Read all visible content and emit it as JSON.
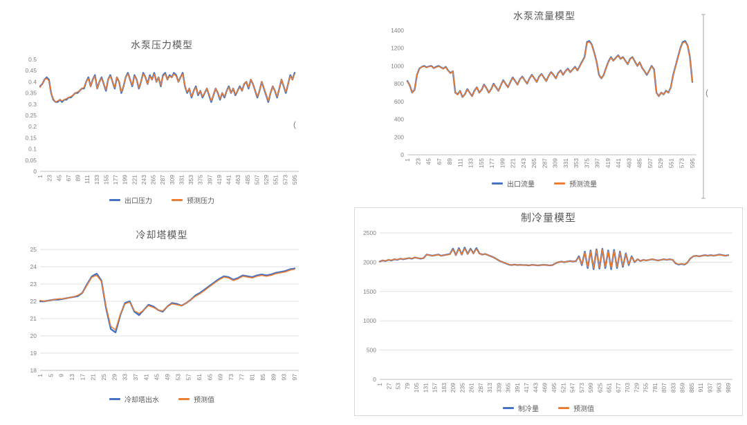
{
  "colors": {
    "actual": "#4472c4",
    "predicted": "#ed7d31",
    "title": "#595959",
    "axis_text": "#7f7f7f",
    "grid": "#e0e0e0",
    "axis_line": "#bfbfbf",
    "panel_border": "#d9d9d9"
  },
  "artifacts": {
    "marks": [
      "(",
      "("
    ]
  },
  "chart_data": [
    {
      "id": "pump-pressure",
      "type": "line",
      "title": "水泵压力模型",
      "xlabel": "",
      "ylabel": "",
      "y_min": 0,
      "y_max": 0.5,
      "grid": false,
      "legend_position": "bottom",
      "y_tick_labels": [
        "0.5",
        "0.45",
        "0.4",
        "0.35",
        "0.3",
        "0.25",
        "0.2",
        "0.15",
        "0.1",
        "0.05",
        "0"
      ],
      "x_tick_labels": [
        "1",
        "23",
        "45",
        "67",
        "89",
        "111",
        "133",
        "155",
        "177",
        "199",
        "221",
        "243",
        "265",
        "287",
        "309",
        "331",
        "353",
        "375",
        "397",
        "419",
        "441",
        "463",
        "485",
        "507",
        "529",
        "551",
        "573",
        "595"
      ],
      "series": [
        {
          "name": "出口压力",
          "color_key": "actual",
          "values": [
            0.38,
            0.39,
            0.41,
            0.42,
            0.41,
            0.35,
            0.32,
            0.31,
            0.31,
            0.32,
            0.31,
            0.32,
            0.32,
            0.33,
            0.33,
            0.34,
            0.35,
            0.35,
            0.36,
            0.37,
            0.37,
            0.4,
            0.42,
            0.38,
            0.41,
            0.43,
            0.37,
            0.4,
            0.42,
            0.39,
            0.36,
            0.41,
            0.43,
            0.4,
            0.37,
            0.42,
            0.4,
            0.35,
            0.38,
            0.42,
            0.44,
            0.41,
            0.38,
            0.43,
            0.41,
            0.37,
            0.4,
            0.44,
            0.42,
            0.39,
            0.43,
            0.41,
            0.44,
            0.4,
            0.42,
            0.38,
            0.43,
            0.44,
            0.41,
            0.43,
            0.42,
            0.44,
            0.43,
            0.4,
            0.42,
            0.44,
            0.38,
            0.35,
            0.37,
            0.33,
            0.36,
            0.38,
            0.34,
            0.36,
            0.33,
            0.35,
            0.37,
            0.34,
            0.31,
            0.34,
            0.37,
            0.35,
            0.32,
            0.35,
            0.33,
            0.36,
            0.38,
            0.35,
            0.37,
            0.34,
            0.36,
            0.38,
            0.36,
            0.39,
            0.4,
            0.37,
            0.41,
            0.39,
            0.36,
            0.33,
            0.36,
            0.4,
            0.37,
            0.34,
            0.31,
            0.35,
            0.38,
            0.36,
            0.33,
            0.37,
            0.41,
            0.38,
            0.35,
            0.39,
            0.43,
            0.41,
            0.44
          ]
        },
        {
          "name": "预测压力",
          "color_key": "predicted",
          "values": [
            0.375,
            0.39,
            0.41,
            0.415,
            0.405,
            0.35,
            0.325,
            0.31,
            0.315,
            0.32,
            0.315,
            0.32,
            0.325,
            0.33,
            0.335,
            0.34,
            0.35,
            0.355,
            0.36,
            0.37,
            0.375,
            0.4,
            0.415,
            0.38,
            0.41,
            0.425,
            0.37,
            0.4,
            0.415,
            0.39,
            0.365,
            0.41,
            0.425,
            0.4,
            0.375,
            0.42,
            0.4,
            0.355,
            0.38,
            0.42,
            0.435,
            0.41,
            0.385,
            0.425,
            0.41,
            0.375,
            0.4,
            0.435,
            0.42,
            0.39,
            0.425,
            0.41,
            0.435,
            0.4,
            0.42,
            0.385,
            0.425,
            0.435,
            0.41,
            0.425,
            0.42,
            0.435,
            0.425,
            0.4,
            0.42,
            0.435,
            0.38,
            0.355,
            0.37,
            0.335,
            0.36,
            0.375,
            0.345,
            0.36,
            0.335,
            0.35,
            0.37,
            0.345,
            0.315,
            0.34,
            0.37,
            0.35,
            0.325,
            0.35,
            0.335,
            0.36,
            0.375,
            0.35,
            0.37,
            0.345,
            0.36,
            0.375,
            0.36,
            0.39,
            0.4,
            0.375,
            0.41,
            0.39,
            0.36,
            0.335,
            0.36,
            0.4,
            0.37,
            0.345,
            0.315,
            0.35,
            0.38,
            0.36,
            0.335,
            0.37,
            0.41,
            0.38,
            0.355,
            0.39,
            0.425,
            0.41,
            0.435
          ]
        }
      ]
    },
    {
      "id": "pump-flow",
      "type": "line",
      "title": "水泵流量模型",
      "xlabel": "",
      "ylabel": "",
      "y_min": 0,
      "y_max": 1400,
      "grid": false,
      "legend_position": "bottom",
      "y_tick_labels": [
        "1400",
        "1200",
        "1000",
        "800",
        "600",
        "400",
        "200",
        "0"
      ],
      "x_tick_labels": [
        "1",
        "23",
        "45",
        "67",
        "89",
        "111",
        "133",
        "155",
        "177",
        "199",
        "221",
        "243",
        "265",
        "287",
        "309",
        "331",
        "353",
        "375",
        "397",
        "419",
        "441",
        "463",
        "485",
        "507",
        "529",
        "551",
        "573",
        "595"
      ],
      "series": [
        {
          "name": "出口流量",
          "color_key": "actual",
          "values": [
            830,
            780,
            700,
            730,
            900,
            970,
            990,
            1000,
            985,
            995,
            1000,
            975,
            990,
            1000,
            985,
            970,
            990,
            950,
            920,
            940,
            700,
            680,
            720,
            650,
            680,
            740,
            700,
            660,
            720,
            760,
            700,
            730,
            790,
            750,
            700,
            740,
            800,
            760,
            720,
            780,
            840,
            800,
            760,
            820,
            870,
            830,
            790,
            850,
            880,
            840,
            800,
            860,
            900,
            860,
            820,
            880,
            910,
            870,
            830,
            890,
            930,
            900,
            860,
            920,
            950,
            900,
            940,
            970,
            930,
            960,
            990,
            950,
            1000,
            1050,
            1100,
            1270,
            1280,
            1240,
            1150,
            1050,
            900,
            860,
            900,
            980,
            1050,
            1100,
            1060,
            1090,
            1120,
            1080,
            1100,
            1060,
            1020,
            1080,
            1100,
            1050,
            1000,
            1040,
            980,
            940,
            900,
            950,
            1000,
            960,
            700,
            660,
            700,
            680,
            720,
            700,
            760,
            900,
            1000,
            1100,
            1200,
            1270,
            1280,
            1230,
            1100,
            820
          ]
        },
        {
          "name": "预测流量",
          "color_key": "predicted",
          "values": [
            825,
            780,
            695,
            730,
            905,
            965,
            990,
            995,
            980,
            995,
            995,
            975,
            985,
            995,
            985,
            965,
            985,
            950,
            915,
            940,
            700,
            675,
            720,
            650,
            680,
            735,
            700,
            660,
            715,
            760,
            700,
            730,
            785,
            750,
            700,
            740,
            795,
            760,
            720,
            780,
            835,
            800,
            760,
            820,
            865,
            830,
            790,
            850,
            875,
            840,
            800,
            860,
            895,
            860,
            820,
            875,
            905,
            870,
            830,
            890,
            925,
            900,
            860,
            915,
            945,
            900,
            940,
            965,
            930,
            960,
            985,
            950,
            995,
            1045,
            1095,
            1260,
            1270,
            1235,
            1145,
            1050,
            905,
            860,
            900,
            975,
            1045,
            1095,
            1060,
            1085,
            1115,
            1080,
            1095,
            1060,
            1020,
            1075,
            1095,
            1050,
            1000,
            1040,
            980,
            940,
            905,
            950,
            995,
            955,
            700,
            660,
            700,
            680,
            715,
            700,
            760,
            895,
            995,
            1095,
            1195,
            1260,
            1270,
            1225,
            1100,
            825
          ]
        }
      ]
    },
    {
      "id": "cooling-tower",
      "type": "line",
      "title": "冷却塔模型",
      "xlabel": "",
      "ylabel": "",
      "y_min": 18,
      "y_max": 25,
      "grid": true,
      "legend_position": "bottom",
      "y_tick_labels": [
        "25",
        "24",
        "23",
        "22",
        "21",
        "20",
        "19",
        "18"
      ],
      "x_tick_labels": [
        "1",
        "5",
        "9",
        "13",
        "17",
        "21",
        "25",
        "29",
        "33",
        "37",
        "41",
        "45",
        "49",
        "53",
        "57",
        "61",
        "65",
        "69",
        "73",
        "77",
        "81",
        "85",
        "89",
        "93",
        "97"
      ],
      "series": [
        {
          "name": "冷却塔出水",
          "color_key": "actual",
          "values": [
            22,
            22,
            22.05,
            22.1,
            22.1,
            22.15,
            22.2,
            22.25,
            22.3,
            22.5,
            23,
            23.45,
            23.6,
            23.2,
            21.6,
            20.4,
            20.2,
            21.2,
            21.9,
            22,
            21.4,
            21.2,
            21.5,
            21.8,
            21.7,
            21.5,
            21.4,
            21.7,
            21.9,
            21.85,
            21.75,
            21.9,
            22.1,
            22.35,
            22.5,
            22.7,
            22.9,
            23.1,
            23.3,
            23.45,
            23.4,
            23.25,
            23.35,
            23.5,
            23.45,
            23.4,
            23.5,
            23.55,
            23.5,
            23.55,
            23.65,
            23.7,
            23.75,
            23.85,
            23.9
          ]
        },
        {
          "name": "预测值",
          "color_key": "predicted",
          "values": [
            22.05,
            22,
            22.05,
            22.1,
            22.15,
            22.15,
            22.2,
            22.25,
            22.35,
            22.5,
            22.95,
            23.4,
            23.5,
            23.15,
            21.7,
            20.55,
            20.35,
            21.25,
            21.85,
            21.95,
            21.45,
            21.3,
            21.5,
            21.75,
            21.65,
            21.5,
            21.45,
            21.7,
            21.85,
            21.8,
            21.75,
            21.9,
            22.1,
            22.3,
            22.45,
            22.65,
            22.85,
            23.05,
            23.25,
            23.4,
            23.35,
            23.2,
            23.3,
            23.45,
            23.4,
            23.35,
            23.45,
            23.5,
            23.45,
            23.5,
            23.6,
            23.65,
            23.7,
            23.8,
            23.85
          ]
        }
      ]
    },
    {
      "id": "cooling-capacity",
      "type": "line",
      "title": "制冷量模型",
      "xlabel": "",
      "ylabel": "",
      "y_min": 0,
      "y_max": 2500,
      "grid": true,
      "legend_position": "bottom",
      "y_tick_labels": [
        "2500",
        "2000",
        "1500",
        "1000",
        "500",
        "0"
      ],
      "x_tick_labels": [
        "1",
        "27",
        "53",
        "79",
        "105",
        "131",
        "157",
        "183",
        "209",
        "235",
        "261",
        "287",
        "313",
        "339",
        "365",
        "391",
        "417",
        "443",
        "469",
        "495",
        "521",
        "547",
        "573",
        "599",
        "625",
        "651",
        "677",
        "703",
        "729",
        "755",
        "781",
        "807",
        "833",
        "859",
        "885",
        "911",
        "937",
        "963",
        "989"
      ],
      "series": [
        {
          "name": "制冷量",
          "color_key": "actual",
          "values": [
            2010,
            2030,
            2020,
            2040,
            2030,
            2050,
            2040,
            2060,
            2050,
            2060,
            2070,
            2060,
            2080,
            2070,
            2060,
            2070,
            2130,
            2120,
            2110,
            2120,
            2130,
            2110,
            2120,
            2130,
            2140,
            2230,
            2120,
            2240,
            2130,
            2250,
            2140,
            2230,
            2150,
            2240,
            2150,
            2130,
            2140,
            2120,
            2100,
            2080,
            2050,
            2020,
            2000,
            1980,
            1960,
            1950,
            1960,
            1950,
            1955,
            1950,
            1950,
            1945,
            1955,
            1950,
            1945,
            1950,
            1955,
            1950,
            1945,
            1950,
            1980,
            2000,
            2010,
            2000,
            2010,
            2020,
            2010,
            2020,
            2100,
            1950,
            2180,
            1900,
            2200,
            1880,
            2220,
            1890,
            2230,
            1900,
            2200,
            1880,
            2210,
            1900,
            2180,
            1920,
            2150,
            1950,
            2100,
            2000,
            2050,
            2020,
            2040,
            2030,
            2040,
            2050,
            2040,
            2030,
            2040,
            2050,
            2040,
            2050,
            2040,
            1980,
            1960,
            1970,
            1960,
            1990,
            2060,
            2100,
            2110,
            2100,
            2110,
            2120,
            2110,
            2120,
            2110,
            2120,
            2130,
            2120,
            2110,
            2120
          ]
        },
        {
          "name": "预测值",
          "color_key": "predicted",
          "values": [
            2005,
            2030,
            2025,
            2040,
            2035,
            2050,
            2045,
            2060,
            2050,
            2065,
            2070,
            2065,
            2080,
            2070,
            2065,
            2070,
            2125,
            2120,
            2110,
            2120,
            2125,
            2110,
            2120,
            2125,
            2135,
            2215,
            2120,
            2225,
            2130,
            2235,
            2140,
            2215,
            2150,
            2225,
            2145,
            2130,
            2140,
            2120,
            2100,
            2080,
            2050,
            2020,
            2000,
            1980,
            1965,
            1950,
            1960,
            1950,
            1955,
            1950,
            1950,
            1948,
            1955,
            1950,
            1948,
            1950,
            1955,
            1950,
            1948,
            1950,
            1980,
            2000,
            2010,
            2000,
            2010,
            2020,
            2010,
            2020,
            2085,
            1965,
            2165,
            1920,
            2185,
            1900,
            2205,
            1910,
            2215,
            1920,
            2185,
            1900,
            2195,
            1920,
            2165,
            1940,
            2135,
            1965,
            2090,
            2005,
            2050,
            2020,
            2040,
            2030,
            2040,
            2050,
            2040,
            2030,
            2040,
            2050,
            2040,
            2050,
            2040,
            1985,
            1965,
            1975,
            1965,
            1990,
            2060,
            2100,
            2110,
            2100,
            2110,
            2120,
            2110,
            2120,
            2110,
            2120,
            2125,
            2120,
            2110,
            2120
          ]
        }
      ]
    }
  ]
}
